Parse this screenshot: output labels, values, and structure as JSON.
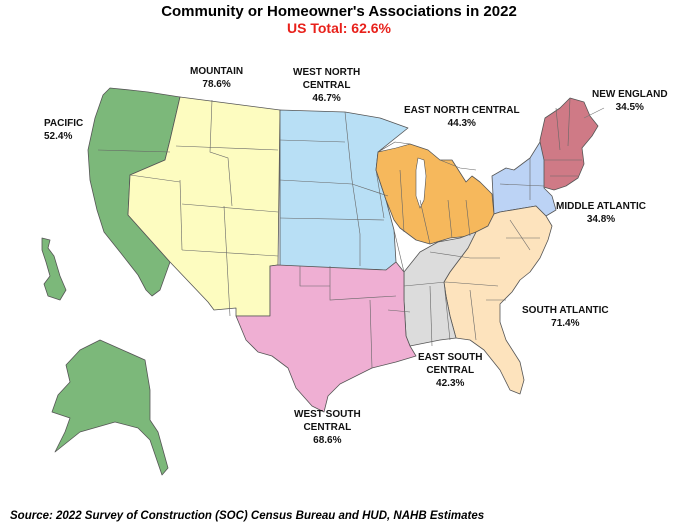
{
  "title": "Community or Homeowner's Associations in 2022",
  "subtitle": "US Total: 62.6%",
  "regions": {
    "pacific": {
      "name": "PACIFIC",
      "value": "52.4%",
      "color": "#7cb87a"
    },
    "mountain": {
      "name": "MOUNTAIN",
      "value": "78.6%",
      "color": "#fdfcc0"
    },
    "west_north_central": {
      "line1": "WEST NORTH",
      "line2": "CENTRAL",
      "value": "46.7%",
      "color": "#b8dff5"
    },
    "east_north_central": {
      "name": "EAST NORTH CENTRAL",
      "value": "44.3%",
      "color": "#f6b85c"
    },
    "new_england": {
      "name": "NEW ENGLAND",
      "value": "34.5%",
      "color": "#cf7a86"
    },
    "middle_atlantic": {
      "name": "MIDDLE ATLANTIC",
      "value": "34.8%",
      "color": "#bcd3f5"
    },
    "south_atlantic": {
      "name": "SOUTH ATLANTIC",
      "value": "71.4%",
      "color": "#fde3bd"
    },
    "east_south_central": {
      "line1": "EAST SOUTH",
      "line2": "CENTRAL",
      "value": "42.3%",
      "color": "#dcdcdc"
    },
    "west_south_central": {
      "line1": "WEST SOUTH",
      "line2": "CENTRAL",
      "value": "68.6%",
      "color": "#efafd3"
    }
  },
  "source": "Source: 2022 Survey of Construction (SOC) Census Bureau and HUD, NAHB Estimates"
}
